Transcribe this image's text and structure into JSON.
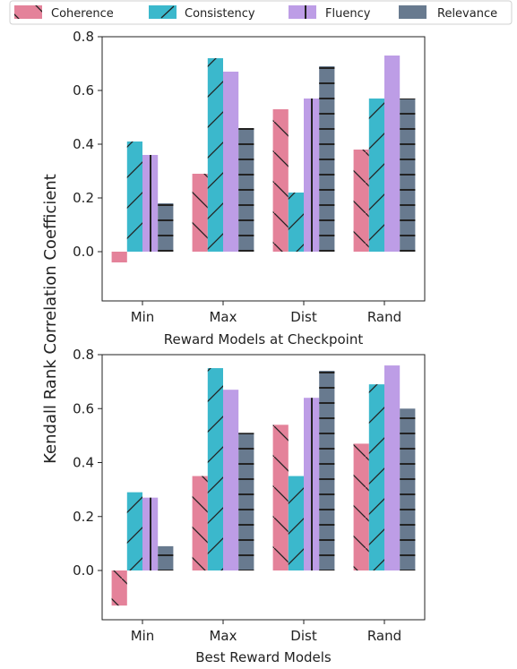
{
  "ylabel": "Kendall Rank Correlation Coefficient",
  "legend": [
    "Coherence",
    "Consistency",
    "Fluency",
    "Relevance"
  ],
  "colors": {
    "Coherence": "#e4829a",
    "Consistency": "#3bb8cc",
    "Fluency": "#bd9de6",
    "Relevance": "#687a8f"
  },
  "chart_data": [
    {
      "type": "bar",
      "categories": [
        "Min",
        "Max",
        "Dist",
        "Rand"
      ],
      "xlabel": "Reward Models at Checkpoint",
      "ylim": [
        -0.13,
        0.8
      ],
      "yticks": [
        "0.0",
        "0.2",
        "0.4",
        "0.6",
        "0.8"
      ],
      "series": [
        {
          "name": "Coherence",
          "values": [
            -0.04,
            0.29,
            0.53,
            0.38
          ]
        },
        {
          "name": "Consistency",
          "values": [
            0.41,
            0.72,
            0.22,
            0.57
          ]
        },
        {
          "name": "Fluency",
          "values": [
            0.36,
            0.67,
            0.57,
            0.73
          ]
        },
        {
          "name": "Relevance",
          "values": [
            0.18,
            0.46,
            0.69,
            0.57
          ]
        }
      ]
    },
    {
      "type": "bar",
      "categories": [
        "Min",
        "Max",
        "Dist",
        "Rand"
      ],
      "xlabel": "Best Reward Models",
      "ylim": [
        -0.19,
        0.8
      ],
      "yticks": [
        "0.0",
        "0.2",
        "0.4",
        "0.6",
        "0.8"
      ],
      "series": [
        {
          "name": "Coherence",
          "values": [
            -0.13,
            0.35,
            0.54,
            0.47
          ]
        },
        {
          "name": "Consistency",
          "values": [
            0.29,
            0.75,
            0.35,
            0.69
          ]
        },
        {
          "name": "Fluency",
          "values": [
            0.27,
            0.67,
            0.64,
            0.76
          ]
        },
        {
          "name": "Relevance",
          "values": [
            0.09,
            0.51,
            0.74,
            0.6
          ]
        }
      ]
    }
  ]
}
